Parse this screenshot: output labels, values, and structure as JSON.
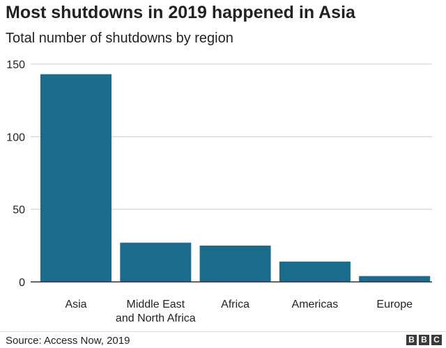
{
  "chart_data": {
    "type": "bar",
    "title": "Most shutdowns in 2019 happened in Asia",
    "subtitle": "Total number of shutdowns by region",
    "categories": [
      [
        "Asia"
      ],
      [
        "Middle East",
        "and North Africa"
      ],
      [
        "Africa"
      ],
      [
        "Americas"
      ],
      [
        "Europe"
      ]
    ],
    "values": [
      143,
      27,
      25,
      14,
      4
    ],
    "yticks": [
      "0",
      "50",
      "100",
      "150"
    ],
    "ylim": [
      0,
      150
    ],
    "grid": true,
    "legend": "none",
    "bar_color": "#1a6c8c",
    "source": "Source: Access Now, 2019"
  },
  "branding": {
    "logo_letters": [
      "B",
      "B",
      "C"
    ]
  }
}
